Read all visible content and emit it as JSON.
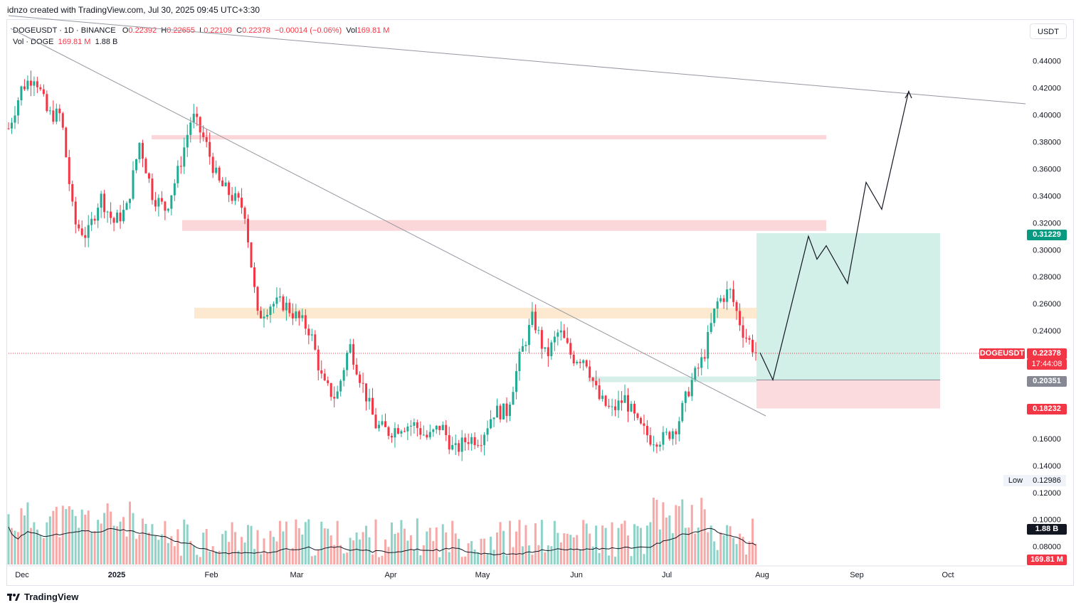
{
  "header": {
    "text": "idnzo created with TradingView.com, Jul 30, 2025 09:45 UTC+3:30"
  },
  "legend": {
    "symbol": "DOGEUSDT · 1D · BINANCE",
    "o_label": "O",
    "o": "0.22392",
    "h_label": "H",
    "h": "0.22655",
    "l_label": "L",
    "l": "0.22109",
    "c_label": "C",
    "c": "0.22378",
    "change": "−0.00014 (−0.06%)",
    "vol_label": "Vol",
    "vol": "169.81 M",
    "vol2_label": "Vol · DOGE",
    "vol2_a": "169.81 M",
    "vol2_b": "1.88 B"
  },
  "currency": "USDT",
  "footer": {
    "brand": "TradingView"
  },
  "tags": {
    "symbol_label": "DOGEUSDT",
    "current_price": "0.22378",
    "countdown": "17:44:08",
    "target": "0.31229",
    "entry": "0.20351",
    "stop": "0.18232",
    "low_label": "Low",
    "low_value": "0.12986",
    "vol_ma": "1.88 B",
    "vol_current": "169.81 M"
  },
  "colors": {
    "up": "#22ab94",
    "down": "#f23645",
    "up_vol": "#8fd3c8",
    "down_vol": "#f7a9a7",
    "entry": "#868993",
    "target_zone": "#d2efe8",
    "stop_zone": "#fbdbdd"
  },
  "chart_data": {
    "type": "candlestick",
    "symbol": "DOGEUSDT",
    "interval": "1D",
    "exchange": "BINANCE",
    "y_ticks": [
      "0.44000",
      "0.42000",
      "0.40000",
      "0.38000",
      "0.36000",
      "0.34000",
      "0.32000",
      "0.30000",
      "0.28000",
      "0.26000",
      "0.24000",
      "0.16000",
      "0.14000",
      "0.12000",
      "0.10000",
      "0.08000"
    ],
    "x_ticks": [
      "Dec",
      "2025",
      "Feb",
      "Mar",
      "Apr",
      "May",
      "Jun",
      "Jul",
      "Aug",
      "Sep",
      "Oct"
    ],
    "ohlc_anchor_closes": [
      [
        "Dec",
        0.39
      ],
      [
        "Dec",
        0.42
      ],
      [
        "Dec",
        0.43
      ],
      [
        "Dec",
        0.4
      ],
      [
        "Dec",
        0.4
      ],
      [
        "Dec",
        0.32
      ],
      [
        "Dec",
        0.31
      ],
      [
        "Dec",
        0.34
      ],
      [
        "Dec",
        0.32
      ],
      [
        "2025",
        0.33
      ],
      [
        "2025",
        0.38
      ],
      [
        "2025",
        0.34
      ],
      [
        "2025",
        0.33
      ],
      [
        "2025",
        0.36
      ],
      [
        "2025",
        0.4
      ],
      [
        "2025",
        0.38
      ],
      [
        "2025",
        0.35
      ],
      [
        "2025",
        0.34
      ],
      [
        "2025",
        0.33
      ],
      [
        "Feb",
        0.25
      ],
      [
        "Feb",
        0.26
      ],
      [
        "Feb",
        0.26
      ],
      [
        "Feb",
        0.25
      ],
      [
        "Feb",
        0.24
      ],
      [
        "Mar",
        0.2
      ],
      [
        "Mar",
        0.19
      ],
      [
        "Mar",
        0.23
      ],
      [
        "Mar",
        0.2
      ],
      [
        "Mar",
        0.17
      ],
      [
        "Mar",
        0.165
      ],
      [
        "Mar",
        0.17
      ],
      [
        "Mar",
        0.17
      ],
      [
        "Apr",
        0.16
      ],
      [
        "Apr",
        0.17
      ],
      [
        "Apr",
        0.15
      ],
      [
        "Apr",
        0.16
      ],
      [
        "Apr",
        0.16
      ],
      [
        "Apr",
        0.18
      ],
      [
        "Apr",
        0.18
      ],
      [
        "May",
        0.22
      ],
      [
        "May",
        0.25
      ],
      [
        "May",
        0.22
      ],
      [
        "May",
        0.24
      ],
      [
        "May",
        0.22
      ],
      [
        "May",
        0.22
      ],
      [
        "Jun",
        0.19
      ],
      [
        "Jun",
        0.18
      ],
      [
        "Jun",
        0.19
      ],
      [
        "Jun",
        0.17
      ],
      [
        "Jun",
        0.16
      ],
      [
        "Jun",
        0.16
      ],
      [
        "Jul",
        0.17
      ],
      [
        "Jul",
        0.2
      ],
      [
        "Jul",
        0.22
      ],
      [
        "Jul",
        0.26
      ],
      [
        "Jul",
        0.27
      ],
      [
        "Jul",
        0.24
      ],
      [
        "Jul",
        0.224
      ]
    ],
    "resistance_zones": [
      {
        "from": 0.382,
        "to": 0.385,
        "color": "#fbd0d3"
      },
      {
        "from": 0.314,
        "to": 0.322,
        "color": "#fbd0d3"
      },
      {
        "from": 0.249,
        "to": 0.257,
        "color": "#fde5c7"
      }
    ],
    "support_zone": {
      "from": 0.202,
      "to": 0.206,
      "color": "#d6efe9"
    },
    "position": {
      "target": 0.31229,
      "entry": 0.20351,
      "stop": 0.18232
    },
    "projection_path": [
      [
        0.2237
      ],
      [
        0.2035
      ],
      [
        0.31
      ],
      [
        0.293
      ],
      [
        0.303
      ],
      [
        0.275
      ],
      [
        0.35
      ],
      [
        0.33
      ],
      [
        0.418
      ]
    ],
    "trendlines": [
      {
        "label": "descending"
      },
      {
        "label": "upper"
      }
    ],
    "low": 0.12986
  }
}
